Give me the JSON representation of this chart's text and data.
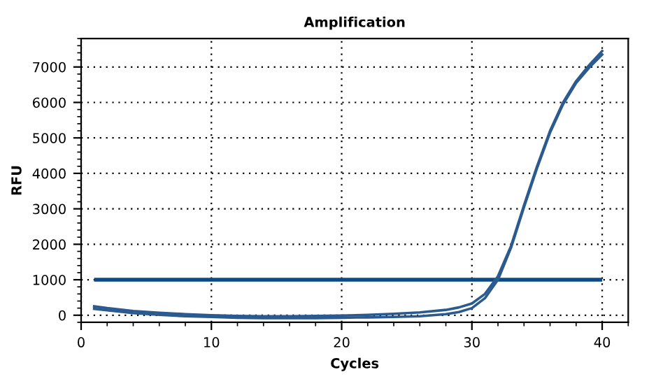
{
  "chart_data": {
    "type": "line",
    "title": "Amplification",
    "xlabel": "Cycles",
    "ylabel": "RFU",
    "xlim": [
      0,
      42
    ],
    "xticks": [
      0,
      10,
      20,
      30,
      40
    ],
    "ylim": [
      -200,
      7800
    ],
    "yticks": [
      0,
      1000,
      2000,
      3000,
      4000,
      5000,
      6000,
      7000
    ],
    "grid": true,
    "legend": false,
    "marker": "none",
    "line_style": "solid",
    "series": [
      {
        "color": "#2b5a8f",
        "x": [
          1,
          2,
          4,
          6,
          8,
          10,
          12,
          14,
          16,
          18,
          20,
          22,
          24,
          26,
          28,
          29,
          30,
          31,
          32,
          33,
          34,
          35,
          36,
          37,
          38,
          39,
          40
        ],
        "values": [
          250,
          200,
          120,
          70,
          30,
          0,
          -20,
          -30,
          -30,
          -20,
          -10,
          10,
          40,
          80,
          150,
          220,
          330,
          600,
          1100,
          1950,
          3100,
          4200,
          5200,
          6000,
          6600,
          7050,
          7450
        ]
      },
      {
        "color": "#2b5a8f",
        "x": [
          1,
          2,
          4,
          6,
          8,
          10,
          12,
          14,
          16,
          18,
          20,
          22,
          24,
          26,
          28,
          29,
          30,
          31,
          32,
          33,
          34,
          35,
          36,
          37,
          38,
          39,
          40
        ],
        "values": [
          180,
          140,
          60,
          10,
          -30,
          -50,
          -70,
          -80,
          -80,
          -80,
          -70,
          -60,
          -50,
          -30,
          30,
          90,
          200,
          480,
          1000,
          1900,
          3050,
          4150,
          5150,
          5950,
          6550,
          6980,
          7350
        ]
      }
    ],
    "ref_lines": [
      {
        "axis": "y",
        "value": 1000,
        "color": "#0b4a85",
        "line_style": "solid"
      }
    ]
  }
}
